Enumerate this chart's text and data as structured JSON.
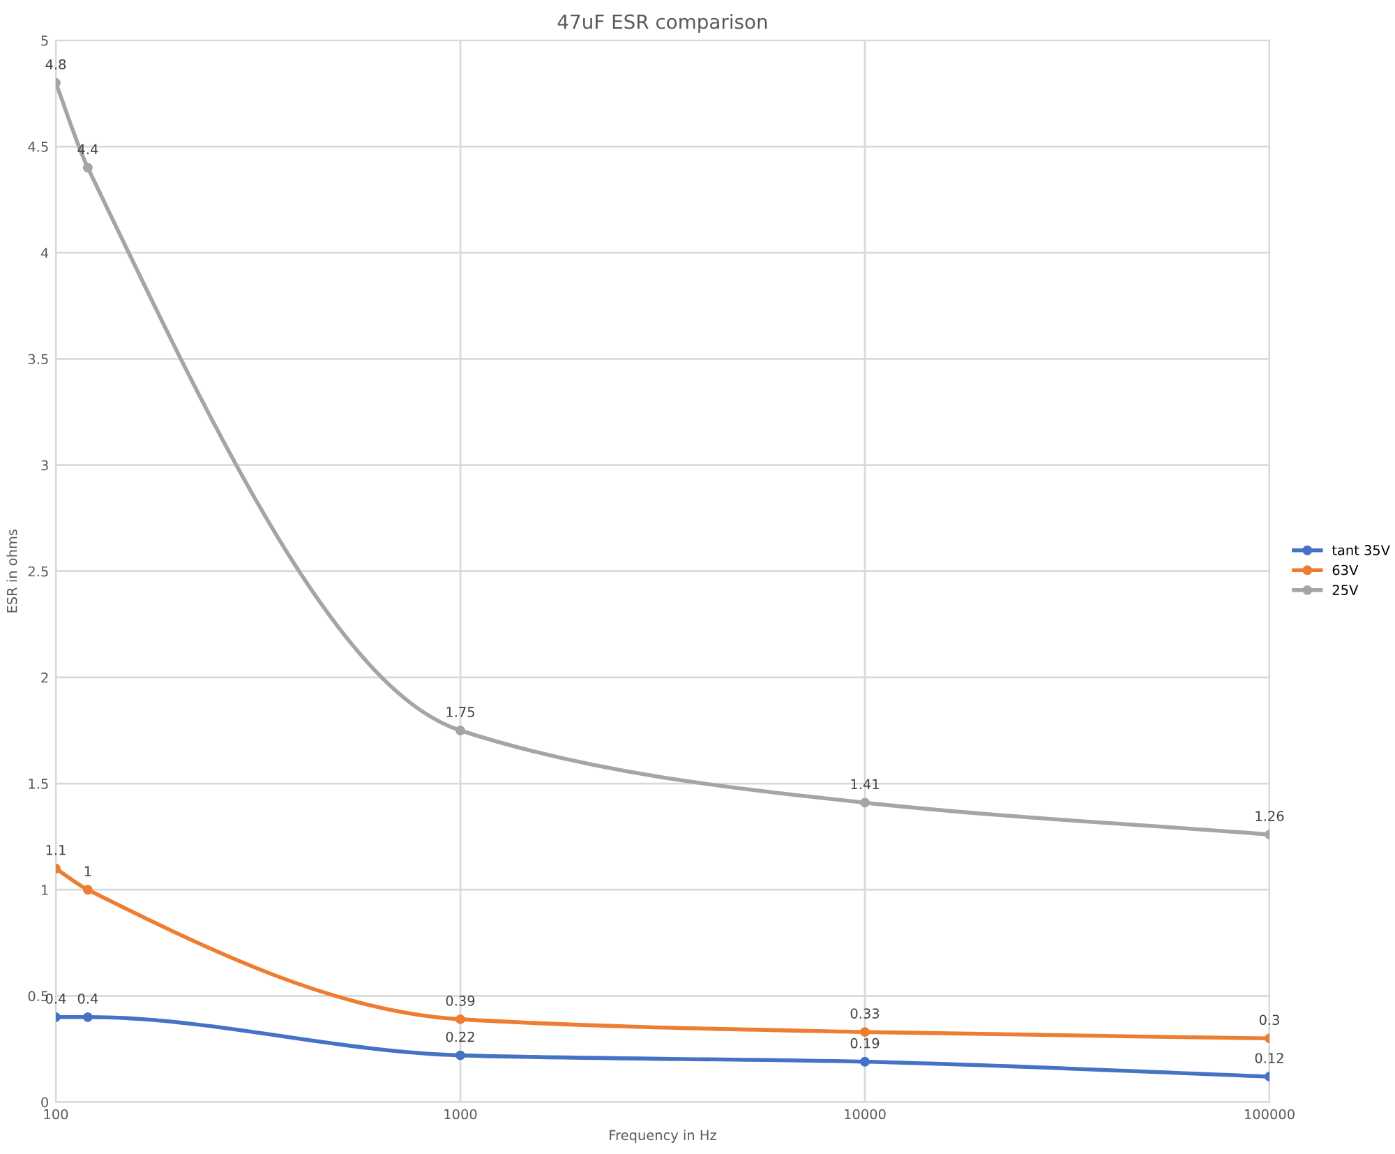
{
  "chart_data": {
    "type": "line",
    "title": "47uF ESR comparison",
    "xlabel": "Frequency in Hz",
    "ylabel": "ESR in ohms",
    "x": [
      100,
      120,
      1000,
      10000,
      100000
    ],
    "series": [
      {
        "name": "tant 35V",
        "color": "#4472c4",
        "values": [
          0.4,
          0.4,
          0.22,
          0.19,
          0.12
        ]
      },
      {
        "name": "63V",
        "color": "#ed7d31",
        "values": [
          1.1,
          1,
          0.39,
          0.33,
          0.3
        ]
      },
      {
        "name": "25V",
        "color": "#a5a5a5",
        "values": [
          4.8,
          4.4,
          1.75,
          1.41,
          1.26
        ]
      }
    ],
    "log": "x",
    "xlim": [
      100,
      100000
    ],
    "xticks": [
      100,
      1000,
      10000,
      100000
    ],
    "ylim": [
      0,
      5
    ],
    "yticks": [
      0,
      0.5,
      1,
      1.5,
      2,
      2.5,
      3,
      3.5,
      4,
      4.5,
      5
    ],
    "grid": true,
    "legend": "right",
    "marker": "circle",
    "line_style": "solid",
    "data_labels": true
  }
}
